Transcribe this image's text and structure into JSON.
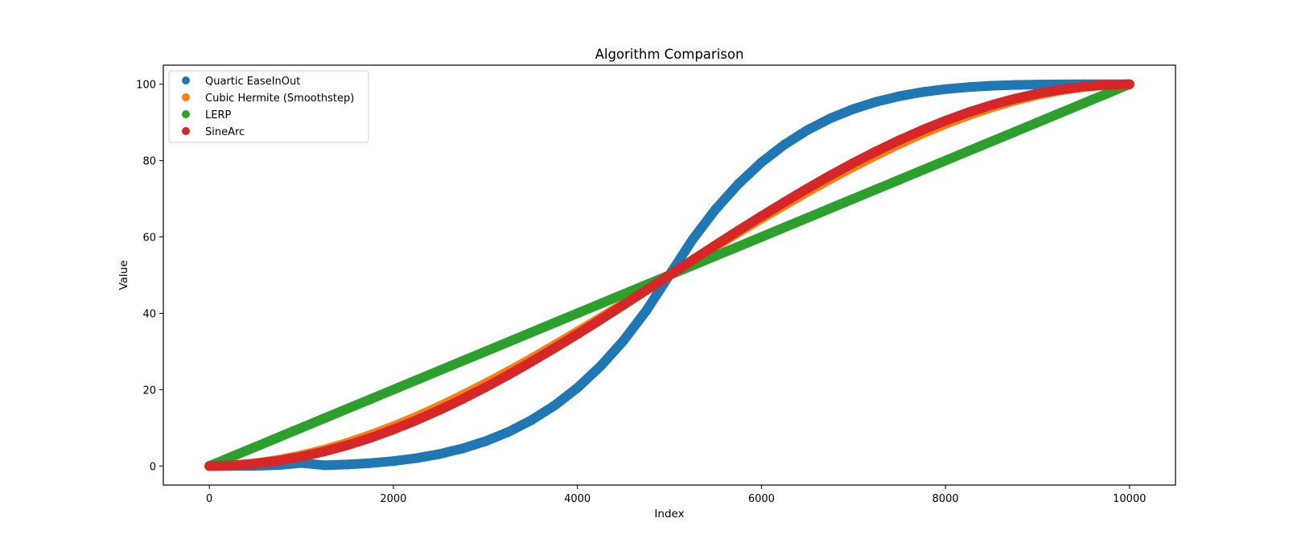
{
  "chart_data": {
    "type": "scatter",
    "title": "Algorithm Comparison",
    "xlabel": "Index",
    "ylabel": "Value",
    "xlim": [
      -500,
      10500
    ],
    "ylim": [
      -5,
      105
    ],
    "xticks": [
      0,
      2000,
      4000,
      6000,
      8000,
      10000
    ],
    "yticks": [
      0,
      20,
      40,
      60,
      80,
      100
    ],
    "xtick_labels": [
      "0",
      "2000",
      "4000",
      "6000",
      "8000",
      "10000"
    ],
    "ytick_labels": [
      "0",
      "20",
      "40",
      "60",
      "80",
      "100"
    ],
    "grid": false,
    "legend_position": "top-left",
    "x": [
      0,
      250,
      500,
      750,
      1000,
      1250,
      1500,
      1750,
      2000,
      2250,
      2500,
      2750,
      3000,
      3250,
      3500,
      3750,
      4000,
      4250,
      4500,
      4750,
      5000,
      5250,
      5500,
      5750,
      6000,
      6250,
      6500,
      6750,
      7000,
      7250,
      7500,
      7750,
      8000,
      8250,
      8500,
      8750,
      9000,
      9250,
      9500,
      9750,
      10000
    ],
    "series": [
      {
        "name": "Quartic EaseInOut",
        "color": "#1f77b4",
        "values": [
          0,
          0.03,
          0.05,
          0.25,
          0.8,
          0.2,
          0.4,
          0.75,
          1.28,
          2.05,
          3.13,
          4.58,
          6.48,
          8.92,
          12.01,
          15.82,
          20.48,
          26.1,
          32.81,
          40.73,
          50,
          59.27,
          67.19,
          73.9,
          79.52,
          84.18,
          87.99,
          91.08,
          93.52,
          95.42,
          96.87,
          97.95,
          98.72,
          99.25,
          99.6,
          99.8,
          99.92,
          99.98,
          99.99,
          100,
          100
        ]
      },
      {
        "name": "Cubic Hermite (Smoothstep)",
        "color": "#ff7f0e",
        "values": [
          0,
          0.18,
          0.73,
          1.6,
          2.8,
          4.3,
          6.08,
          8.12,
          10.4,
          12.9,
          15.63,
          18.55,
          21.6,
          24.8,
          28.18,
          31.66,
          35.2,
          38.8,
          42.53,
          46.26,
          50,
          53.74,
          57.47,
          61.2,
          64.8,
          68.34,
          71.82,
          75.2,
          78.4,
          81.45,
          84.37,
          87.1,
          89.6,
          91.88,
          93.92,
          95.7,
          97.2,
          98.4,
          99.27,
          99.82,
          100
        ]
      },
      {
        "name": "LERP",
        "color": "#2ca02c",
        "values": [
          0,
          2.5,
          5,
          7.5,
          10,
          12.5,
          15,
          17.5,
          20,
          22.5,
          25,
          27.5,
          30,
          32.5,
          35,
          37.5,
          40,
          42.5,
          45,
          47.5,
          50,
          52.5,
          55,
          57.5,
          60,
          62.5,
          65,
          67.5,
          70,
          72.5,
          75,
          77.5,
          80,
          82.5,
          85,
          87.5,
          90,
          92.5,
          95,
          97.5,
          100
        ]
      },
      {
        "name": "SineArc",
        "color": "#d62728",
        "values": [
          0,
          0.15,
          0.62,
          1.39,
          2.45,
          3.81,
          5.45,
          7.36,
          9.55,
          11.98,
          14.64,
          17.52,
          20.61,
          23.87,
          27.3,
          30.87,
          34.55,
          38.32,
          42.18,
          46.08,
          50,
          53.92,
          57.82,
          61.68,
          65.45,
          69.13,
          72.7,
          76.13,
          79.39,
          82.48,
          85.36,
          88.02,
          90.45,
          92.64,
          94.55,
          96.19,
          97.55,
          98.61,
          99.38,
          99.85,
          100
        ]
      }
    ]
  }
}
